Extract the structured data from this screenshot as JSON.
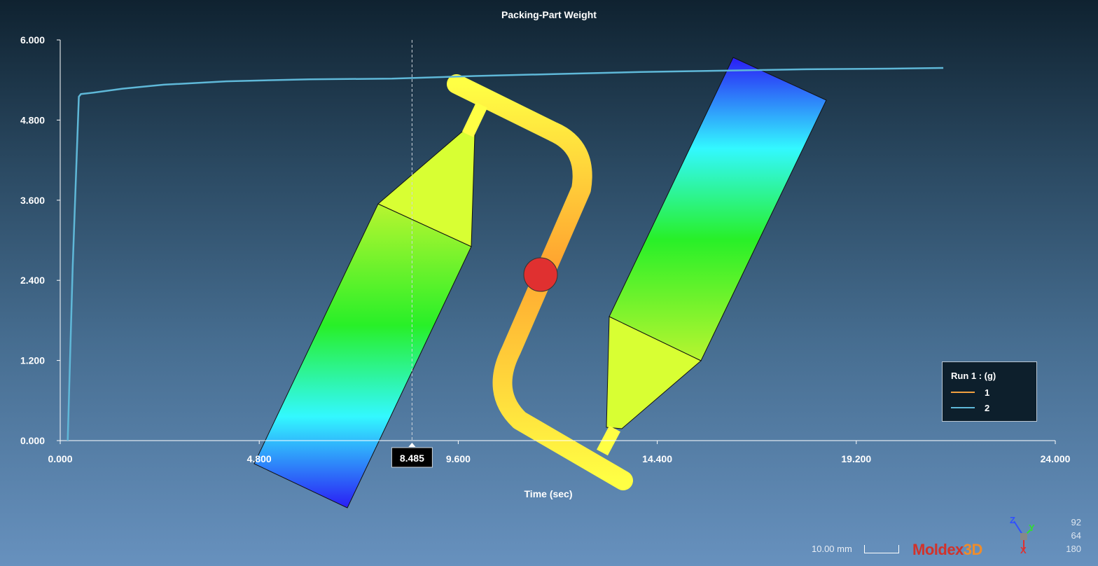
{
  "chart_data": {
    "type": "line",
    "title": "Packing-Part Weight",
    "xlabel": "Time (sec)",
    "ylabel": "",
    "xlim": [
      0,
      24
    ],
    "ylim": [
      0,
      6
    ],
    "xticks": [
      "0.000",
      "4.800",
      "9.600",
      "14.400",
      "19.200",
      "24.000"
    ],
    "yticks": [
      "0.000",
      "1.200",
      "2.400",
      "3.600",
      "4.800",
      "6.000"
    ],
    "cursor": {
      "x": 8.485,
      "label": "8.485"
    },
    "legend": {
      "title": "Run 1 :   (g)",
      "position": "bottom-right"
    },
    "series": [
      {
        "name": "1",
        "color": "#f0a040",
        "x": [],
        "y": []
      },
      {
        "name": "2",
        "color": "#5fb8d8",
        "x": [
          0.18,
          0.3,
          0.45,
          0.5,
          0.8,
          1.5,
          2.5,
          4.0,
          6.0,
          8.0,
          10.0,
          12.0,
          14.0,
          16.0,
          18.0,
          20.0,
          21.3
        ],
        "y": [
          0.0,
          2.6,
          5.15,
          5.19,
          5.21,
          5.27,
          5.33,
          5.38,
          5.41,
          5.42,
          5.46,
          5.49,
          5.52,
          5.54,
          5.56,
          5.57,
          5.58
        ]
      }
    ]
  },
  "footer": {
    "scale_label": "10.00 mm",
    "logo_part1": "Moldex",
    "logo_part2": "3D",
    "rgb": [
      "92",
      "64",
      "180"
    ],
    "axes": [
      "Z",
      "Y",
      "X"
    ]
  }
}
